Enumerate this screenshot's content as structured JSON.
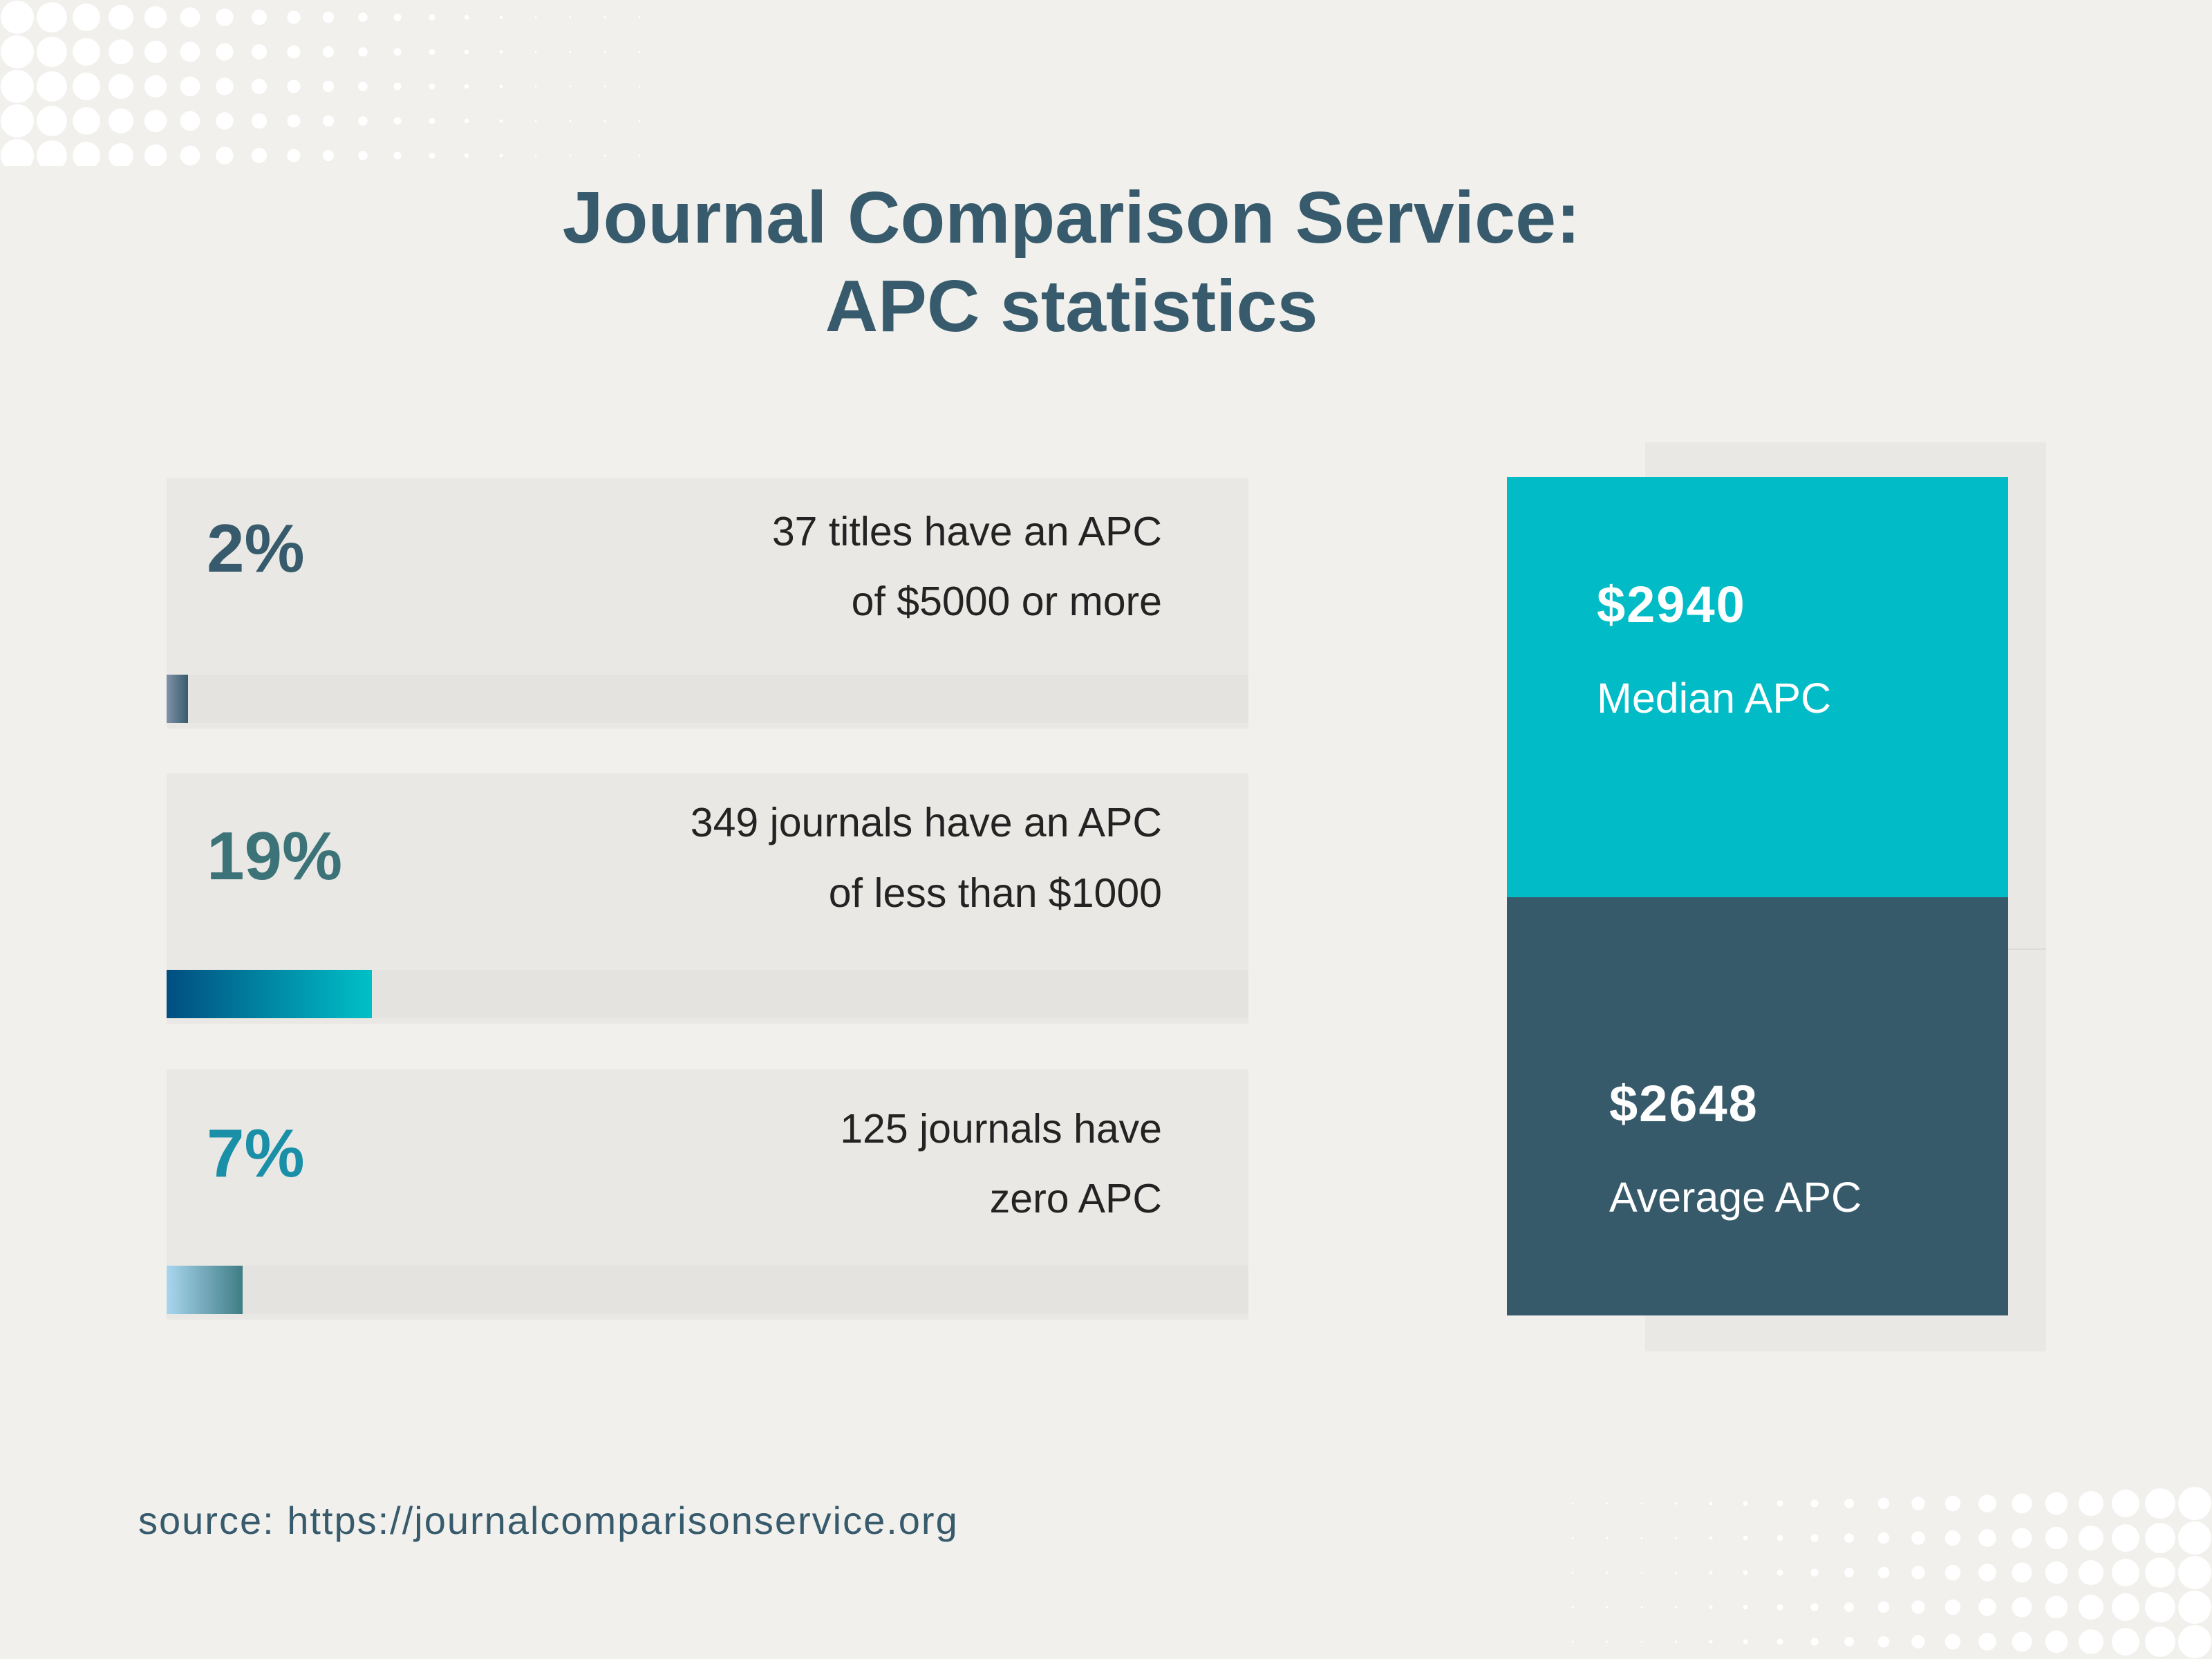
{
  "title": {
    "line1": "Journal Comparison Service:",
    "line2": "APC statistics"
  },
  "chart_data": {
    "type": "bar",
    "categories": [
      "2%",
      "19%",
      "7%"
    ],
    "values": [
      2,
      19,
      7
    ],
    "ylim": [
      0,
      100
    ],
    "items": [
      {
        "percent": "2%",
        "value": 2,
        "text": [
          "37 titles have an APC",
          "of $5000 or more"
        ],
        "pct_color": "#375b6c",
        "gradient": [
          "#8193a9",
          "#375b6c"
        ]
      },
      {
        "percent": "19%",
        "value": 19,
        "text": [
          "349 journals have an APC",
          "of less than $1000"
        ],
        "pct_color": "#3b7378",
        "gradient": [
          "#014e80",
          "#00c0c7"
        ]
      },
      {
        "percent": "7%",
        "value": 7,
        "text": [
          "125 journals have",
          "zero APC"
        ],
        "pct_color": "#1a8fa8",
        "gradient": [
          "#a9d6ef",
          "#3f7d85"
        ]
      }
    ]
  },
  "kpis": {
    "median": {
      "value": "$2940",
      "label": "Median APC",
      "color": "#01bcc6"
    },
    "average": {
      "value": "$2648",
      "label": "Average APC",
      "color": "#375a6b"
    }
  },
  "source": "source: https://journalcomparisonservice.org"
}
